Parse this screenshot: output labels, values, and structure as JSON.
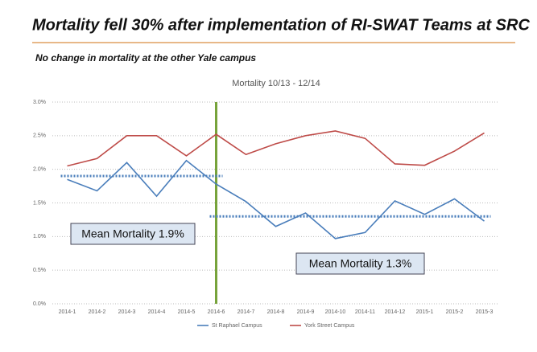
{
  "chart_data": {
    "type": "line",
    "headline": "Mortality fell 30% after implementation of RI-SWAT Teams at SRC",
    "subtitle": "No change in mortality at the other Yale campus",
    "title": "Mortality 10/13 - 12/14",
    "categories": [
      "2014-1",
      "2014-2",
      "2014-3",
      "2014-4",
      "2014-5",
      "2014-6",
      "2014-7",
      "2014-8",
      "2014-9",
      "2014-10",
      "2014-11",
      "2014-12",
      "2015-1",
      "2015-2",
      "2015-3"
    ],
    "series": [
      {
        "name": "St Raphael Campus",
        "color": "#4a7ebb",
        "values": [
          1.85,
          1.68,
          2.1,
          1.6,
          2.13,
          1.78,
          1.52,
          1.15,
          1.35,
          0.97,
          1.06,
          1.53,
          1.33,
          1.56,
          1.23
        ]
      },
      {
        "name": "York Street Campus",
        "color": "#be4b48",
        "values": [
          2.05,
          2.16,
          2.5,
          2.5,
          2.2,
          2.52,
          2.22,
          2.38,
          2.5,
          2.57,
          2.46,
          2.08,
          2.06,
          2.27,
          2.54
        ]
      }
    ],
    "mean_lines": [
      {
        "label": "Mean Mortality 1.9%",
        "value": 1.9
      },
      {
        "label": "Mean Mortality 1.3%",
        "value": 1.3
      }
    ],
    "ylim": [
      0,
      3
    ],
    "yticks": [
      {
        "value": 0,
        "label": "0.0%"
      },
      {
        "value": 0.5,
        "label": "0.5%"
      },
      {
        "value": 1,
        "label": "1.0%"
      },
      {
        "value": 1.5,
        "label": "1.5%"
      },
      {
        "value": 2,
        "label": "2.0%"
      },
      {
        "value": 2.5,
        "label": "2.5%"
      },
      {
        "value": 3,
        "label": "3.0%"
      }
    ],
    "grid": true
  }
}
